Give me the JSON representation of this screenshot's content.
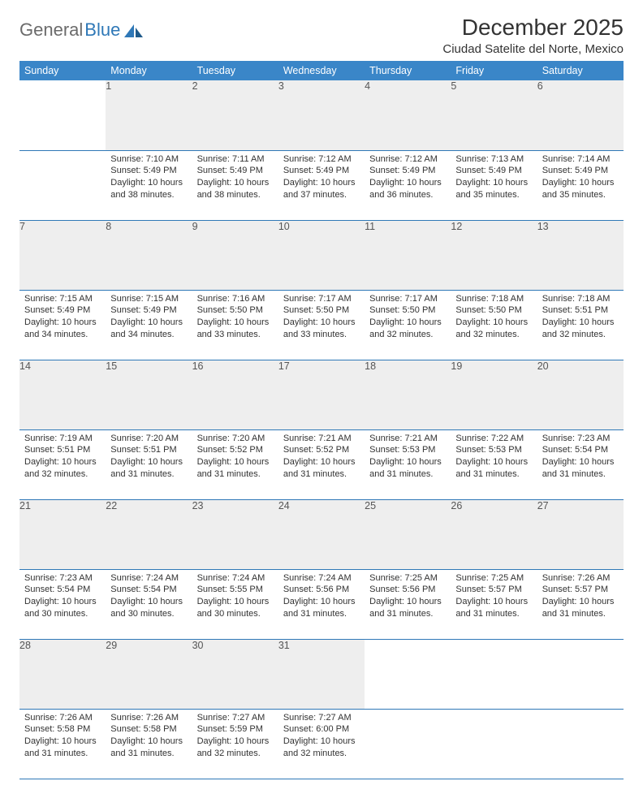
{
  "brand": {
    "part1": "General",
    "part2": "Blue"
  },
  "title": "December 2025",
  "location": "Ciudad Satelite del Norte, Mexico",
  "colors": {
    "header_bg": "#3a86c8",
    "header_fg": "#ffffff",
    "daynum_bg": "#eeeeee",
    "rule": "#2f78b7",
    "logo_gray": "#6b6b6b",
    "logo_blue": "#2f78b7"
  },
  "day_headers": [
    "Sunday",
    "Monday",
    "Tuesday",
    "Wednesday",
    "Thursday",
    "Friday",
    "Saturday"
  ],
  "weeks": [
    [
      null,
      {
        "n": "1",
        "sr": "7:10 AM",
        "ss": "5:49 PM",
        "dl": "10 hours and 38 minutes."
      },
      {
        "n": "2",
        "sr": "7:11 AM",
        "ss": "5:49 PM",
        "dl": "10 hours and 38 minutes."
      },
      {
        "n": "3",
        "sr": "7:12 AM",
        "ss": "5:49 PM",
        "dl": "10 hours and 37 minutes."
      },
      {
        "n": "4",
        "sr": "7:12 AM",
        "ss": "5:49 PM",
        "dl": "10 hours and 36 minutes."
      },
      {
        "n": "5",
        "sr": "7:13 AM",
        "ss": "5:49 PM",
        "dl": "10 hours and 35 minutes."
      },
      {
        "n": "6",
        "sr": "7:14 AM",
        "ss": "5:49 PM",
        "dl": "10 hours and 35 minutes."
      }
    ],
    [
      {
        "n": "7",
        "sr": "7:15 AM",
        "ss": "5:49 PM",
        "dl": "10 hours and 34 minutes."
      },
      {
        "n": "8",
        "sr": "7:15 AM",
        "ss": "5:49 PM",
        "dl": "10 hours and 34 minutes."
      },
      {
        "n": "9",
        "sr": "7:16 AM",
        "ss": "5:50 PM",
        "dl": "10 hours and 33 minutes."
      },
      {
        "n": "10",
        "sr": "7:17 AM",
        "ss": "5:50 PM",
        "dl": "10 hours and 33 minutes."
      },
      {
        "n": "11",
        "sr": "7:17 AM",
        "ss": "5:50 PM",
        "dl": "10 hours and 32 minutes."
      },
      {
        "n": "12",
        "sr": "7:18 AM",
        "ss": "5:50 PM",
        "dl": "10 hours and 32 minutes."
      },
      {
        "n": "13",
        "sr": "7:18 AM",
        "ss": "5:51 PM",
        "dl": "10 hours and 32 minutes."
      }
    ],
    [
      {
        "n": "14",
        "sr": "7:19 AM",
        "ss": "5:51 PM",
        "dl": "10 hours and 32 minutes."
      },
      {
        "n": "15",
        "sr": "7:20 AM",
        "ss": "5:51 PM",
        "dl": "10 hours and 31 minutes."
      },
      {
        "n": "16",
        "sr": "7:20 AM",
        "ss": "5:52 PM",
        "dl": "10 hours and 31 minutes."
      },
      {
        "n": "17",
        "sr": "7:21 AM",
        "ss": "5:52 PM",
        "dl": "10 hours and 31 minutes."
      },
      {
        "n": "18",
        "sr": "7:21 AM",
        "ss": "5:53 PM",
        "dl": "10 hours and 31 minutes."
      },
      {
        "n": "19",
        "sr": "7:22 AM",
        "ss": "5:53 PM",
        "dl": "10 hours and 31 minutes."
      },
      {
        "n": "20",
        "sr": "7:23 AM",
        "ss": "5:54 PM",
        "dl": "10 hours and 31 minutes."
      }
    ],
    [
      {
        "n": "21",
        "sr": "7:23 AM",
        "ss": "5:54 PM",
        "dl": "10 hours and 30 minutes."
      },
      {
        "n": "22",
        "sr": "7:24 AM",
        "ss": "5:54 PM",
        "dl": "10 hours and 30 minutes."
      },
      {
        "n": "23",
        "sr": "7:24 AM",
        "ss": "5:55 PM",
        "dl": "10 hours and 30 minutes."
      },
      {
        "n": "24",
        "sr": "7:24 AM",
        "ss": "5:56 PM",
        "dl": "10 hours and 31 minutes."
      },
      {
        "n": "25",
        "sr": "7:25 AM",
        "ss": "5:56 PM",
        "dl": "10 hours and 31 minutes."
      },
      {
        "n": "26",
        "sr": "7:25 AM",
        "ss": "5:57 PM",
        "dl": "10 hours and 31 minutes."
      },
      {
        "n": "27",
        "sr": "7:26 AM",
        "ss": "5:57 PM",
        "dl": "10 hours and 31 minutes."
      }
    ],
    [
      {
        "n": "28",
        "sr": "7:26 AM",
        "ss": "5:58 PM",
        "dl": "10 hours and 31 minutes."
      },
      {
        "n": "29",
        "sr": "7:26 AM",
        "ss": "5:58 PM",
        "dl": "10 hours and 31 minutes."
      },
      {
        "n": "30",
        "sr": "7:27 AM",
        "ss": "5:59 PM",
        "dl": "10 hours and 32 minutes."
      },
      {
        "n": "31",
        "sr": "7:27 AM",
        "ss": "6:00 PM",
        "dl": "10 hours and 32 minutes."
      },
      null,
      null,
      null
    ]
  ],
  "labels": {
    "sunrise": "Sunrise: ",
    "sunset": "Sunset: ",
    "daylight": "Daylight: "
  }
}
